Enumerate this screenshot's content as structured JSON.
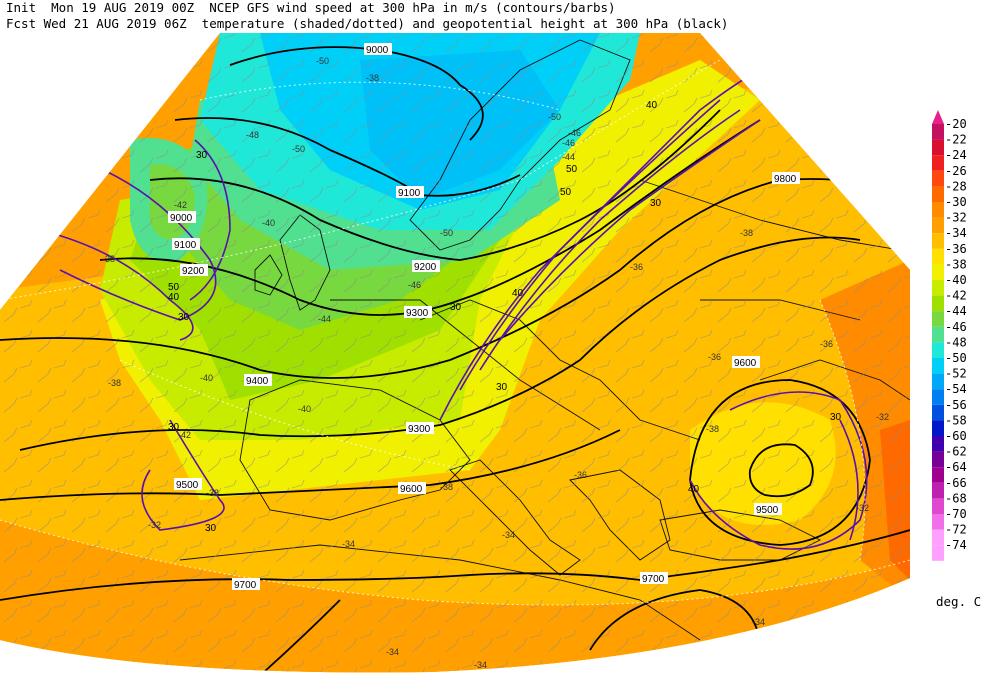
{
  "header": {
    "line1": "Init  Mon 19 AUG 2019 00Z  NCEP GFS wind speed at 300 hPa in m/s (contours/barbs)",
    "line2": "Fcst Wed 21 AUG 2019 06Z  temperature (shaded/dotted) and geopotential height at 300 hPa (black)"
  },
  "legend": {
    "unit_label": "deg. C",
    "levels": [
      "-20",
      "-22",
      "-24",
      "-26",
      "-28",
      "-30",
      "-32",
      "-34",
      "-36",
      "-38",
      "-40",
      "-42",
      "-44",
      "-46",
      "-48",
      "-50",
      "-52",
      "-54",
      "-56",
      "-58",
      "-60",
      "-62",
      "-64",
      "-66",
      "-68",
      "-70",
      "-72",
      "-74"
    ],
    "colors": [
      "#e8208c",
      "#c41060",
      "#d81030",
      "#f02020",
      "#ff4810",
      "#ff6a00",
      "#ff8c00",
      "#ffa000",
      "#ffbe00",
      "#ffe000",
      "#f0f000",
      "#c8ec00",
      "#a0e000",
      "#78d840",
      "#50e090",
      "#20e8d8",
      "#00d0f8",
      "#00a8f8",
      "#0080f0",
      "#0050e0",
      "#0018c8",
      "#4000b0",
      "#780098",
      "#a00090",
      "#c020b0",
      "#e048d0",
      "#f070e8",
      "#ffa0ff"
    ]
  },
  "height_labels": [
    "9000",
    "9000",
    "9100",
    "9100",
    "9200",
    "9200",
    "9300",
    "9300",
    "9400",
    "9500",
    "9500",
    "9600",
    "9600",
    "9700",
    "9700",
    "9800"
  ],
  "wind_labels": [
    "30",
    "30",
    "30",
    "30",
    "30",
    "30",
    "30",
    "30",
    "40",
    "40",
    "40",
    "40",
    "50",
    "50",
    "50"
  ],
  "temp_labels": [
    "-50",
    "-38",
    "-48",
    "-50",
    "-50",
    "-46",
    "-42",
    "-44",
    "-46",
    "-40",
    "-38",
    "-38",
    "-40",
    "-36",
    "-36",
    "-38",
    "-38",
    "-34",
    "-32",
    "-32",
    "-36",
    "-34",
    "-34",
    "-34",
    "-38",
    "-34",
    "-36",
    "-32",
    "-42",
    "-40",
    "-44",
    "-46",
    "-50",
    "-38"
  ]
}
